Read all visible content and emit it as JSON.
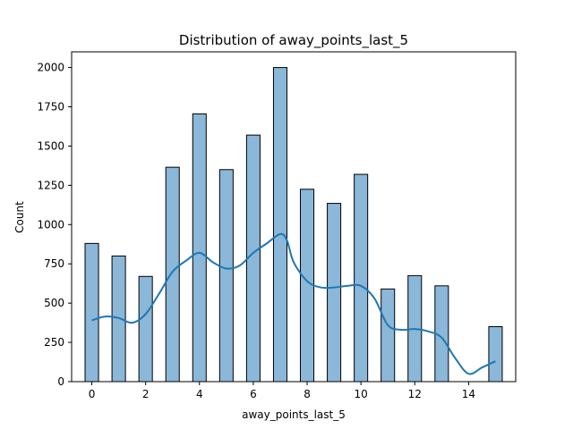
{
  "chart_data": {
    "type": "bar",
    "title": "Distribution of away_points_last_5",
    "xlabel": "away_points_last_5",
    "ylabel": "Count",
    "xlim": [
      -0.75,
      15.75
    ],
    "ylim": [
      0,
      2100
    ],
    "xticks": [
      0,
      2,
      4,
      6,
      8,
      10,
      12,
      14
    ],
    "yticks": [
      0,
      250,
      500,
      750,
      1000,
      1250,
      1500,
      1750,
      2000
    ],
    "bar_width": 0.5,
    "bar_color": "#8bb7d9",
    "bar_edge_color": "#000000",
    "kde_color": "#1f77b4",
    "grid": false,
    "bars": [
      {
        "x": 0,
        "value": 880
      },
      {
        "x": 1,
        "value": 800
      },
      {
        "x": 2,
        "value": 670
      },
      {
        "x": 3,
        "value": 1365
      },
      {
        "x": 4,
        "value": 1705
      },
      {
        "x": 5,
        "value": 1350
      },
      {
        "x": 6,
        "value": 1570
      },
      {
        "x": 7,
        "value": 2000
      },
      {
        "x": 8,
        "value": 1225
      },
      {
        "x": 9,
        "value": 1135
      },
      {
        "x": 10,
        "value": 1320
      },
      {
        "x": 11,
        "value": 590
      },
      {
        "x": 12,
        "value": 675
      },
      {
        "x": 13,
        "value": 610
      },
      {
        "x": 14,
        "value": 0
      },
      {
        "x": 15,
        "value": 350
      }
    ],
    "kde": {
      "x": [
        0,
        0.5,
        1,
        1.5,
        2,
        2.5,
        3,
        3.5,
        4,
        4.5,
        5,
        5.5,
        6,
        6.5,
        7,
        7.25,
        7.5,
        8,
        8.5,
        9,
        9.5,
        10,
        10.5,
        11,
        11.5,
        12,
        12.5,
        13,
        13.5,
        14,
        14.5,
        15
      ],
      "y": [
        390,
        415,
        405,
        375,
        430,
        560,
        700,
        770,
        820,
        760,
        720,
        740,
        820,
        880,
        940,
        900,
        760,
        640,
        600,
        600,
        610,
        610,
        530,
        360,
        330,
        335,
        320,
        280,
        150,
        50,
        90,
        130
      ]
    }
  }
}
